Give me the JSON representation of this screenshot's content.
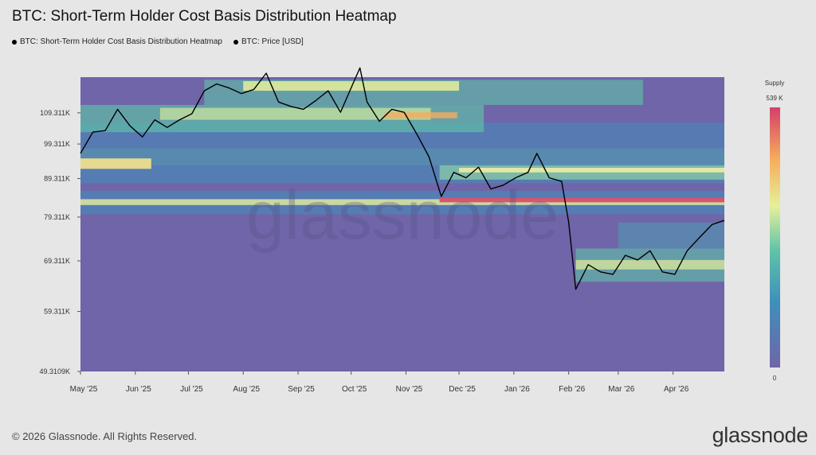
{
  "chart_data": {
    "type": "heatmap",
    "title": "BTC: Short-Term Holder Cost Basis Distribution Heatmap",
    "legend": [
      {
        "name": "BTC: Short-Term Holder Cost Basis Distribution Heatmap",
        "color": "#000000"
      },
      {
        "name": "BTC: Price [USD]",
        "color": "#000000"
      }
    ],
    "x_ticks": [
      "May '25",
      "Jun '25",
      "Jul '25",
      "Aug '25",
      "Sep '25",
      "Oct '25",
      "Nov '25",
      "Dec '25",
      "Jan '26",
      "Feb '26",
      "Mar '26",
      "Apr '26"
    ],
    "x_range": [
      "2025-05-01",
      "2026-04-30"
    ],
    "y_scale": "log",
    "y_range": [
      49310.9,
      122000
    ],
    "y_ticks": [
      {
        "label": "109.311K",
        "value": 109311
      },
      {
        "label": "99.311K",
        "value": 99311
      },
      {
        "label": "89.311K",
        "value": 89311
      },
      {
        "label": "79.311K",
        "value": 79311
      },
      {
        "label": "69.311K",
        "value": 69311
      },
      {
        "label": "59.311K",
        "value": 59311
      },
      {
        "label": "49.3109K",
        "value": 49310.9
      }
    ],
    "colorbar": {
      "title": "Supply",
      "max_label": "539 K",
      "min_label": "0",
      "max": 539000,
      "min": 0
    },
    "price_series": [
      [
        "2025-05-01",
        96500
      ],
      [
        "2025-05-08",
        103000
      ],
      [
        "2025-05-15",
        103500
      ],
      [
        "2025-05-22",
        110500
      ],
      [
        "2025-05-29",
        105000
      ],
      [
        "2025-06-05",
        101500
      ],
      [
        "2025-06-12",
        107000
      ],
      [
        "2025-06-19",
        104500
      ],
      [
        "2025-06-26",
        107000
      ],
      [
        "2025-07-03",
        109000
      ],
      [
        "2025-07-10",
        117000
      ],
      [
        "2025-07-17",
        119500
      ],
      [
        "2025-07-24",
        118000
      ],
      [
        "2025-07-31",
        116000
      ],
      [
        "2025-08-07",
        117500
      ],
      [
        "2025-08-14",
        123500
      ],
      [
        "2025-08-21",
        113000
      ],
      [
        "2025-08-28",
        111500
      ],
      [
        "2025-09-04",
        110500
      ],
      [
        "2025-09-11",
        113500
      ],
      [
        "2025-09-18",
        117000
      ],
      [
        "2025-09-25",
        109500
      ],
      [
        "2025-10-02",
        119500
      ],
      [
        "2025-10-06",
        125500
      ],
      [
        "2025-10-10",
        113000
      ],
      [
        "2025-10-17",
        106500
      ],
      [
        "2025-10-24",
        110500
      ],
      [
        "2025-10-31",
        109500
      ],
      [
        "2025-11-07",
        102500
      ],
      [
        "2025-11-14",
        95500
      ],
      [
        "2025-11-21",
        84500
      ],
      [
        "2025-11-28",
        91000
      ],
      [
        "2025-12-05",
        89500
      ],
      [
        "2025-12-12",
        92500
      ],
      [
        "2025-12-19",
        86500
      ],
      [
        "2025-12-26",
        87500
      ],
      [
        "2026-01-02",
        89500
      ],
      [
        "2026-01-09",
        91000
      ],
      [
        "2026-01-14",
        96500
      ],
      [
        "2026-01-21",
        89500
      ],
      [
        "2026-01-28",
        88500
      ],
      [
        "2026-02-01",
        78000
      ],
      [
        "2026-02-05",
        63500
      ],
      [
        "2026-02-12",
        68500
      ],
      [
        "2026-02-19",
        67000
      ],
      [
        "2026-02-26",
        66500
      ],
      [
        "2026-03-05",
        70500
      ],
      [
        "2026-03-12",
        69500
      ],
      [
        "2026-03-19",
        71500
      ],
      [
        "2026-03-26",
        67000
      ],
      [
        "2026-04-02",
        66500
      ],
      [
        "2026-04-09",
        71500
      ],
      [
        "2026-04-16",
        74500
      ],
      [
        "2026-04-23",
        77500
      ],
      [
        "2026-04-30",
        78500
      ]
    ],
    "grid": false
  },
  "footer": {
    "copyright": "© 2026 Glassnode. All Rights Reserved.",
    "logo": "glassnode"
  },
  "watermark": "glassnode",
  "colors": {
    "background": "#e6e6e6",
    "heat_low": "#6f65a8",
    "heat_high": "#d43f6a",
    "price_line": "#000000"
  }
}
